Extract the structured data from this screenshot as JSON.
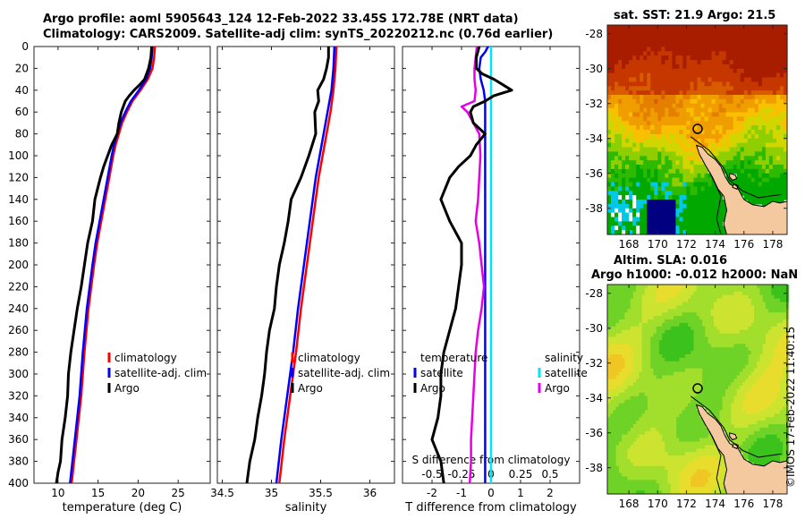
{
  "header": {
    "title_line1": "Argo profile: aoml 5905643_124 12-Feb-2022 33.45S 172.78E (NRT data)",
    "title_line2": "Climatology: CARS2009. Satellite-adj clim: synTS_20220212.nc (0.76d earlier)"
  },
  "colors": {
    "climatology": "#ff0000",
    "satellite_adj": "#0000ff",
    "argo": "#000000",
    "argo_salinity_diff": "#e600e6",
    "satellite_salinity": "#00e5ff",
    "land": "#f5c9a0"
  },
  "stamp": "©IMOS 17-Feb-2022 11:40:15",
  "chart_data": [
    {
      "type": "line",
      "panel": "temperature",
      "xlabel": "temperature (deg C)",
      "ylabel": "",
      "xlim": [
        7,
        29
      ],
      "ylim": [
        400,
        0
      ],
      "xticks": [
        10,
        15,
        20,
        25
      ],
      "yticks": [
        0,
        20,
        40,
        60,
        80,
        100,
        120,
        140,
        160,
        180,
        200,
        220,
        240,
        260,
        280,
        300,
        320,
        340,
        360,
        380,
        400
      ],
      "legend": [
        "climatology",
        "satellite-adj. clim",
        "Argo"
      ],
      "series": [
        {
          "name": "climatology",
          "color": "climatology",
          "depth": [
            0,
            10,
            20,
            30,
            40,
            50,
            60,
            70,
            80,
            90,
            100,
            120,
            140,
            160,
            180,
            200,
            240,
            280,
            320,
            360,
            400
          ],
          "values": [
            22.1,
            22.0,
            21.8,
            21.2,
            20.3,
            19.3,
            18.6,
            18.0,
            17.6,
            17.2,
            16.9,
            16.4,
            15.9,
            15.4,
            14.9,
            14.5,
            13.8,
            13.3,
            12.9,
            12.3,
            11.7
          ]
        },
        {
          "name": "satellite-adj. clim",
          "color": "satellite_adj",
          "depth": [
            0,
            10,
            20,
            30,
            40,
            50,
            60,
            70,
            80,
            90,
            100,
            120,
            140,
            160,
            180,
            200,
            240,
            280,
            320,
            360,
            400
          ],
          "values": [
            21.8,
            21.7,
            21.5,
            21.0,
            20.1,
            19.1,
            18.4,
            17.8,
            17.4,
            17.0,
            16.7,
            16.2,
            15.7,
            15.2,
            14.7,
            14.3,
            13.6,
            13.1,
            12.7,
            12.1,
            11.5
          ]
        },
        {
          "name": "Argo",
          "color": "argo",
          "depth": [
            0,
            10,
            20,
            30,
            35,
            40,
            45,
            50,
            60,
            70,
            80,
            90,
            100,
            110,
            120,
            140,
            160,
            180,
            200,
            220,
            240,
            260,
            280,
            300,
            320,
            340,
            360,
            380,
            390,
            400
          ],
          "values": [
            21.7,
            21.6,
            21.3,
            20.8,
            20.2,
            19.5,
            18.9,
            18.4,
            17.9,
            17.6,
            17.4,
            16.7,
            16.2,
            15.7,
            15.3,
            14.6,
            14.3,
            13.7,
            13.3,
            12.9,
            12.4,
            12.0,
            11.6,
            11.3,
            11.2,
            10.9,
            10.5,
            10.3,
            10.0,
            9.8
          ]
        }
      ]
    },
    {
      "type": "line",
      "panel": "salinity",
      "xlabel": "salinity",
      "ylabel": "",
      "xlim": [
        34.45,
        36.25
      ],
      "ylim": [
        400,
        0
      ],
      "xticks": [
        34.5,
        35,
        35.5,
        36
      ],
      "legend": [
        "climatology",
        "satellite-adj. clim",
        "Argo"
      ],
      "series": [
        {
          "name": "climatology",
          "color": "climatology",
          "depth": [
            0,
            20,
            40,
            60,
            80,
            100,
            120,
            140,
            160,
            180,
            200,
            240,
            280,
            320,
            360,
            400
          ],
          "values": [
            35.66,
            35.65,
            35.63,
            35.6,
            35.56,
            35.52,
            35.48,
            35.45,
            35.42,
            35.39,
            35.36,
            35.3,
            35.25,
            35.19,
            35.13,
            35.08
          ]
        },
        {
          "name": "satellite-adj. clim",
          "color": "satellite_adj",
          "depth": [
            0,
            20,
            40,
            60,
            80,
            100,
            120,
            140,
            160,
            180,
            200,
            240,
            280,
            320,
            360,
            400
          ],
          "values": [
            35.64,
            35.63,
            35.61,
            35.57,
            35.53,
            35.49,
            35.45,
            35.42,
            35.39,
            35.36,
            35.33,
            35.27,
            35.22,
            35.16,
            35.1,
            35.05
          ]
        },
        {
          "name": "Argo",
          "color": "argo",
          "depth": [
            0,
            10,
            20,
            30,
            40,
            50,
            60,
            80,
            100,
            120,
            140,
            160,
            180,
            200,
            220,
            240,
            260,
            280,
            300,
            320,
            340,
            360,
            380,
            400
          ],
          "values": [
            35.58,
            35.58,
            35.56,
            35.53,
            35.47,
            35.48,
            35.44,
            35.45,
            35.38,
            35.3,
            35.2,
            35.17,
            35.13,
            35.08,
            35.05,
            35.03,
            34.98,
            34.95,
            34.93,
            34.9,
            34.86,
            34.83,
            34.78,
            34.75
          ]
        }
      ]
    },
    {
      "type": "line",
      "panel": "differences",
      "xlabel": "T difference from climatology",
      "xlabel_top": "S difference from climatology",
      "xlim": [
        -3,
        3
      ],
      "xticks": [
        -2,
        -1,
        0,
        1,
        2
      ],
      "xlim_salinity": [
        -0.75,
        0.75
      ],
      "xticks_salinity": [
        -0.5,
        -0.25,
        0,
        0.25,
        0.5
      ],
      "ylim": [
        400,
        0
      ],
      "legend_temperature_title": "temperature",
      "legend_salinity_title": "salinity",
      "legend_temperature": [
        "satellite",
        "Argo"
      ],
      "legend_salinity": [
        "satellite",
        "Argo"
      ],
      "series": [
        {
          "name": "T satellite",
          "color": "satellite_adj",
          "scale": "T",
          "depth": [
            0,
            5,
            10,
            20,
            30,
            40,
            50,
            60,
            80,
            100,
            150,
            200,
            250,
            300,
            350,
            400
          ],
          "values": [
            -0.1,
            -0.2,
            -0.35,
            -0.4,
            -0.35,
            -0.25,
            -0.2,
            -0.2,
            -0.2,
            -0.2,
            -0.2,
            -0.2,
            -0.2,
            -0.2,
            -0.2,
            -0.2
          ]
        },
        {
          "name": "S satellite",
          "color": "satellite_salinity",
          "scale": "S",
          "depth": [
            0,
            400
          ],
          "values": [
            0.0,
            0.0
          ]
        },
        {
          "name": "S Argo",
          "color": "argo_salinity_diff",
          "scale": "S",
          "depth": [
            0,
            10,
            20,
            30,
            40,
            50,
            55,
            60,
            70,
            80,
            100,
            120,
            140,
            160,
            180,
            200,
            220,
            240,
            260,
            280,
            300,
            320,
            340,
            360,
            380,
            400
          ],
          "values": [
            -0.12,
            -0.13,
            -0.14,
            -0.14,
            -0.13,
            -0.14,
            -0.25,
            -0.2,
            -0.15,
            -0.1,
            -0.09,
            -0.1,
            -0.11,
            -0.13,
            -0.1,
            -0.08,
            -0.06,
            -0.08,
            -0.11,
            -0.13,
            -0.14,
            -0.15,
            -0.16,
            -0.17,
            -0.17,
            -0.18
          ]
        },
        {
          "name": "T Argo",
          "color": "argo",
          "scale": "T",
          "depth": [
            0,
            10,
            20,
            25,
            30,
            35,
            40,
            45,
            50,
            55,
            60,
            70,
            80,
            90,
            100,
            110,
            120,
            140,
            160,
            180,
            200,
            220,
            240,
            260,
            280,
            300,
            320,
            340,
            360,
            380,
            400
          ],
          "values": [
            -0.4,
            -0.5,
            -0.5,
            -0.3,
            0.1,
            0.4,
            0.7,
            0.1,
            -0.2,
            -0.6,
            -0.7,
            -0.6,
            -0.2,
            -0.5,
            -0.7,
            -1.1,
            -1.4,
            -1.7,
            -1.4,
            -1.0,
            -1.0,
            -1.1,
            -1.2,
            -1.4,
            -1.6,
            -1.7,
            -1.7,
            -1.8,
            -2.0,
            -1.7,
            -1.6
          ]
        }
      ]
    },
    {
      "type": "heatmap",
      "panel": "sat_sst_map",
      "title": "sat. SST: 21.9 Argo: 21.5",
      "xlim": [
        166.5,
        179
      ],
      "ylim": [
        -39.5,
        -27.5
      ],
      "xticks": [
        168,
        170,
        172,
        174,
        176,
        178
      ],
      "yticks": [
        -28,
        -30,
        -32,
        -34,
        -36,
        -38
      ],
      "argo_position": [
        172.78,
        -33.45
      ]
    },
    {
      "type": "heatmap",
      "panel": "altim_sla_map",
      "title_line1": "Altim. SLA: 0.016",
      "title_line2": "Argo h1000: -0.012 h2000: NaN",
      "xlim": [
        166.5,
        179
      ],
      "ylim": [
        -39.5,
        -27.5
      ],
      "xticks": [
        168,
        170,
        172,
        174,
        176,
        178
      ],
      "yticks": [
        -28,
        -30,
        -32,
        -34,
        -36,
        -38
      ],
      "argo_position": [
        172.78,
        -33.45
      ]
    }
  ]
}
